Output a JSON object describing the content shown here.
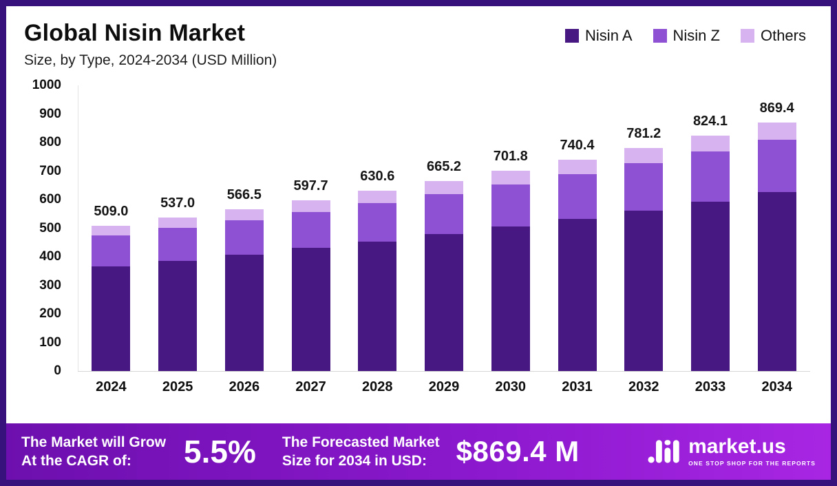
{
  "title": "Global Nisin Market",
  "subtitle": "Size, by Type, 2024-2034 (USD Million)",
  "chart_data": {
    "type": "bar",
    "stacked": true,
    "title": "Global Nisin Market",
    "subtitle": "Size, by Type, 2024-2034 (USD Million)",
    "xlabel": "",
    "ylabel": "USD Million",
    "ylim": [
      0,
      1000
    ],
    "yticks": [
      1000,
      900,
      800,
      700,
      600,
      500,
      400,
      300,
      200,
      100,
      0
    ],
    "grid": false,
    "legend_position": "top-right",
    "categories": [
      "2024",
      "2025",
      "2026",
      "2027",
      "2028",
      "2029",
      "2030",
      "2031",
      "2032",
      "2033",
      "2034"
    ],
    "series": [
      {
        "name": "Nisin A",
        "color": "#471782",
        "values": [
          366.5,
          386.6,
          407.9,
          430.3,
          454.0,
          478.9,
          505.3,
          533.1,
          562.5,
          593.4,
          626.0
        ]
      },
      {
        "name": "Nisin Z",
        "color": "#8e51d4",
        "values": [
          107.9,
          113.8,
          120.1,
          126.7,
          133.7,
          141.0,
          148.8,
          157.0,
          165.6,
          174.7,
          184.3
        ]
      },
      {
        "name": "Others",
        "color": "#d7b4ef",
        "values": [
          34.6,
          36.6,
          38.5,
          40.7,
          42.9,
          45.3,
          47.7,
          50.3,
          53.1,
          56.0,
          59.1
        ]
      }
    ],
    "totals": [
      "509.0",
      "537.0",
      "566.5",
      "597.7",
      "630.6",
      "665.2",
      "701.8",
      "740.4",
      "781.2",
      "824.1",
      "869.4"
    ]
  },
  "footer": {
    "cagr_label": "The Market will Grow\nAt the CAGR of:",
    "cagr_value": "5.5%",
    "forecast_label": "The Forecasted Market\nSize for 2034 in USD:",
    "forecast_value": "$869.4 M",
    "brand_name": "market.us",
    "brand_tagline": "ONE STOP SHOP FOR THE REPORTS"
  },
  "colors": {
    "frame_border": "#37127d",
    "footer_gradient_start": "#6d0fae",
    "footer_gradient_end": "#a826e3",
    "nisin_a": "#471782",
    "nisin_z": "#8e51d4",
    "others": "#d7b4ef"
  }
}
